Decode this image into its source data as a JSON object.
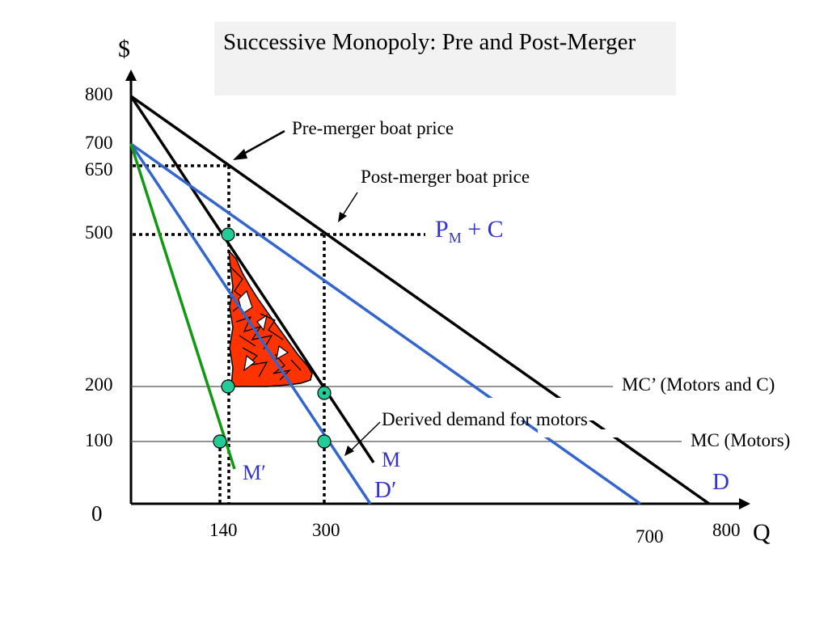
{
  "title": "Successive Monopoly: Pre and Post-Merger",
  "y_axis_label": "$",
  "x_axis_label": "Q",
  "origin_label": "0",
  "y_ticks": [
    "800",
    "700",
    "650",
    "500",
    "200",
    "100"
  ],
  "x_ticks": [
    "140",
    "300",
    "700",
    "800"
  ],
  "curve_labels": {
    "demand": "D",
    "demand_prime": "D′",
    "mr": "M",
    "mr_prime": "M′",
    "pm_c_base": "P",
    "pm_c_sub": "M",
    "pm_c_rest": " + C"
  },
  "annotations": {
    "pre_merger": "Pre-merger boat price",
    "post_merger": "Post-merger boat price",
    "derived_demand": "Derived demand for motors",
    "mc_prime": "MC’ (Motors and C)",
    "mc": "MC (Motors)"
  },
  "colors": {
    "black": "#000000",
    "blue": "#3366cc",
    "green": "#119911",
    "teal_marker": "#22cc99",
    "deadweight_fill": "#ff3300",
    "label_blue": "#3333cc",
    "title_bg": "#f2f2f2"
  },
  "chart_data": {
    "type": "line",
    "series": [
      {
        "name": "D",
        "points": [
          [
            0,
            800
          ],
          [
            800,
            0
          ]
        ]
      },
      {
        "name": "M",
        "points": [
          [
            0,
            800
          ],
          [
            400,
            0
          ]
        ]
      },
      {
        "name": "D′",
        "points": [
          [
            0,
            700
          ],
          [
            700,
            0
          ]
        ]
      },
      {
        "name": "M′",
        "points": [
          [
            0,
            700
          ],
          [
            350,
            0
          ]
        ]
      },
      {
        "name": "MC’ (Motors and C)",
        "points": [
          [
            0,
            200
          ],
          [
            800,
            200
          ]
        ]
      },
      {
        "name": "MC (Motors)",
        "points": [
          [
            0,
            100
          ],
          [
            800,
            100
          ]
        ]
      }
    ],
    "highlighted_points": [
      [
        140,
        500
      ],
      [
        140,
        200
      ],
      [
        300,
        200
      ],
      [
        140,
        100
      ],
      [
        300,
        100
      ]
    ],
    "price_levels": [
      650,
      500
    ],
    "quantity_levels": [
      140,
      300
    ],
    "xlabel": "Q",
    "ylabel": "$"
  }
}
